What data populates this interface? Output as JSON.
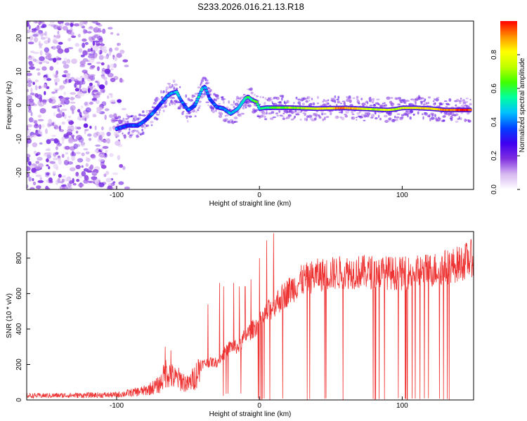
{
  "title": "S233.2026.016.21.13.R18",
  "chart_data": [
    {
      "type": "heatmap",
      "xlabel": "Height of straight line (km)",
      "ylabel": "Frequency (Hz)",
      "xlim": [
        -163,
        150
      ],
      "ylim": [
        -25,
        25
      ],
      "xticks": [
        -100,
        0,
        100
      ],
      "yticks": [
        20,
        10,
        0,
        -10,
        -20
      ],
      "colorbar": {
        "label": "Normalized spectral amplitude",
        "range": [
          0.0,
          1.0
        ],
        "ticks": [
          "0.0",
          "0.2",
          "0.4",
          "0.6",
          "0.8"
        ],
        "colormap": [
          "#ffffff",
          "#d8b8f0",
          "#8030e0",
          "#4000f0",
          "#0040ff",
          "#00c0ff",
          "#00ffa0",
          "#40ff00",
          "#c0ff00",
          "#ffff00",
          "#ff9000",
          "#ff0000"
        ]
      },
      "ridge": {
        "x": [
          -100,
          -92,
          -85,
          -80,
          -75,
          -70,
          -65,
          -62,
          -58,
          -55,
          -50,
          -45,
          -42,
          -40,
          -38,
          -35,
          -30,
          -25,
          -20,
          -15,
          -10,
          -8,
          -5,
          -2,
          0,
          5,
          20,
          40,
          60,
          80,
          90,
          95,
          100,
          110,
          120,
          130,
          148
        ],
        "y": [
          -7,
          -6,
          -6,
          -4.5,
          -2.5,
          0,
          2.5,
          3.5,
          4,
          1.5,
          -1.5,
          0,
          3,
          5,
          5.5,
          2,
          -0.5,
          -1,
          -2.5,
          -1,
          2,
          2.5,
          1.5,
          1,
          -1,
          -0.7,
          -0.7,
          -1,
          -0.8,
          -1.2,
          -1.4,
          -1.2,
          -0.8,
          -0.8,
          -1,
          -1.4,
          -1.4
        ],
        "amplitude": [
          0.35,
          0.3,
          0.35,
          0.3,
          0.35,
          0.3,
          0.35,
          0.4,
          0.45,
          0.35,
          0.35,
          0.4,
          0.5,
          0.45,
          0.4,
          0.35,
          0.35,
          0.4,
          0.45,
          0.45,
          0.5,
          0.55,
          0.55,
          0.6,
          0.5,
          0.55,
          0.65,
          0.75,
          0.9,
          0.7,
          0.75,
          0.7,
          0.75,
          0.8,
          0.8,
          0.9,
          0.95
        ]
      },
      "noise_region_x": [
        -163,
        -90
      ]
    },
    {
      "type": "line",
      "xlabel": "Height of straight line (km)",
      "ylabel": "SNR (10 * v/v)",
      "xlim": [
        -163,
        150
      ],
      "ylim": [
        0,
        950
      ],
      "xticks": [
        -100,
        0,
        100
      ],
      "yticks": [
        0,
        200,
        400,
        600,
        800
      ],
      "series": [
        {
          "color": "#ee3333",
          "envelope_x": [
            -163,
            -100,
            -80,
            -70,
            -65,
            -60,
            -55,
            -50,
            -45,
            -40,
            -35,
            -30,
            -25,
            -20,
            -15,
            -10,
            -5,
            0,
            10,
            20,
            30,
            40,
            60,
            80,
            100,
            120,
            140,
            150
          ],
          "envelope_y": [
            25,
            30,
            55,
            90,
            170,
            130,
            120,
            90,
            140,
            220,
            230,
            230,
            280,
            330,
            320,
            390,
            430,
            470,
            580,
            660,
            730,
            760,
            780,
            780,
            770,
            790,
            830,
            870
          ],
          "spike_x": [
            -66,
            -62,
            -36,
            -28,
            -25,
            -18,
            -14,
            -10,
            -6,
            0,
            2,
            5,
            10
          ],
          "spike_y": [
            300,
            280,
            540,
            660,
            640,
            660,
            640,
            640,
            680,
            800,
            870,
            900,
            940
          ],
          "dropout_x_range": [
            -5,
            137
          ]
        }
      ]
    }
  ]
}
